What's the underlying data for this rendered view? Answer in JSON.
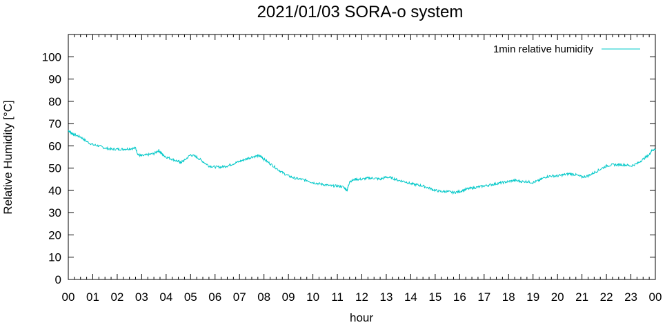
{
  "chart_data": {
    "type": "line",
    "title": "2021/01/03 SORA-o system",
    "xlabel": "hour",
    "ylabel": "Relative Humidity [°C]",
    "xlim": [
      0,
      24
    ],
    "ylim": [
      0,
      110
    ],
    "x_tick_labels": [
      "00",
      "01",
      "02",
      "03",
      "04",
      "05",
      "06",
      "07",
      "08",
      "09",
      "10",
      "11",
      "12",
      "13",
      "14",
      "15",
      "16",
      "17",
      "18",
      "19",
      "20",
      "21",
      "22",
      "23",
      "00"
    ],
    "y_ticks": [
      0,
      10,
      20,
      30,
      40,
      50,
      60,
      70,
      80,
      90,
      100
    ],
    "grid": false,
    "legend_position": "top-right",
    "series": [
      {
        "name": "1min relative humidity",
        "color": "#00c8c8",
        "x": [
          0,
          0.1,
          0.25,
          0.5,
          0.75,
          1.0,
          1.25,
          1.5,
          1.75,
          2.0,
          2.25,
          2.5,
          2.75,
          2.85,
          3.0,
          3.25,
          3.5,
          3.7,
          3.85,
          4.0,
          4.25,
          4.5,
          4.6,
          4.75,
          5.0,
          5.25,
          5.5,
          5.75,
          6.0,
          6.25,
          6.5,
          6.75,
          7.0,
          7.25,
          7.5,
          7.75,
          7.9,
          8.0,
          8.25,
          8.5,
          8.75,
          9.0,
          9.25,
          9.5,
          9.75,
          10.0,
          10.25,
          10.5,
          10.75,
          11.0,
          11.25,
          11.4,
          11.5,
          11.75,
          12.0,
          12.25,
          12.5,
          12.75,
          13.0,
          13.25,
          13.5,
          13.75,
          14.0,
          14.25,
          14.5,
          14.75,
          15.0,
          15.25,
          15.5,
          15.75,
          16.0,
          16.25,
          16.5,
          16.75,
          17.0,
          17.25,
          17.5,
          17.75,
          18.0,
          18.25,
          18.5,
          18.75,
          19.0,
          19.25,
          19.5,
          19.75,
          20.0,
          20.25,
          20.5,
          20.75,
          21.0,
          21.25,
          21.5,
          21.75,
          22.0,
          22.25,
          22.5,
          22.75,
          23.0,
          23.25,
          23.5,
          23.75,
          23.85,
          24.0
        ],
        "y": [
          67,
          66,
          65,
          64,
          62,
          60.5,
          60,
          59,
          58.5,
          58.5,
          58.5,
          58.7,
          59,
          56,
          55.5,
          56,
          56.5,
          58,
          56,
          55,
          54,
          53,
          52.5,
          53.5,
          56,
          55,
          53,
          51,
          50.5,
          50.5,
          51,
          52,
          53,
          54,
          55,
          55.5,
          55,
          54,
          52,
          50,
          48,
          46.5,
          45.5,
          45,
          44.5,
          43.5,
          43,
          42.5,
          42,
          42,
          41.5,
          40,
          44,
          45,
          45,
          45.5,
          45.5,
          45,
          46,
          45.5,
          44.5,
          44,
          43,
          42.5,
          42,
          41,
          40,
          39.5,
          39.5,
          39,
          39.5,
          40.5,
          41,
          41.5,
          42,
          42.5,
          43,
          43.5,
          44,
          44.5,
          44,
          44,
          43.5,
          44.5,
          46,
          46.5,
          46.5,
          47,
          47.5,
          47,
          46,
          46.5,
          48,
          49.5,
          51,
          51.5,
          51.5,
          51.5,
          51,
          52,
          54,
          56,
          58,
          58.5
        ]
      }
    ]
  }
}
